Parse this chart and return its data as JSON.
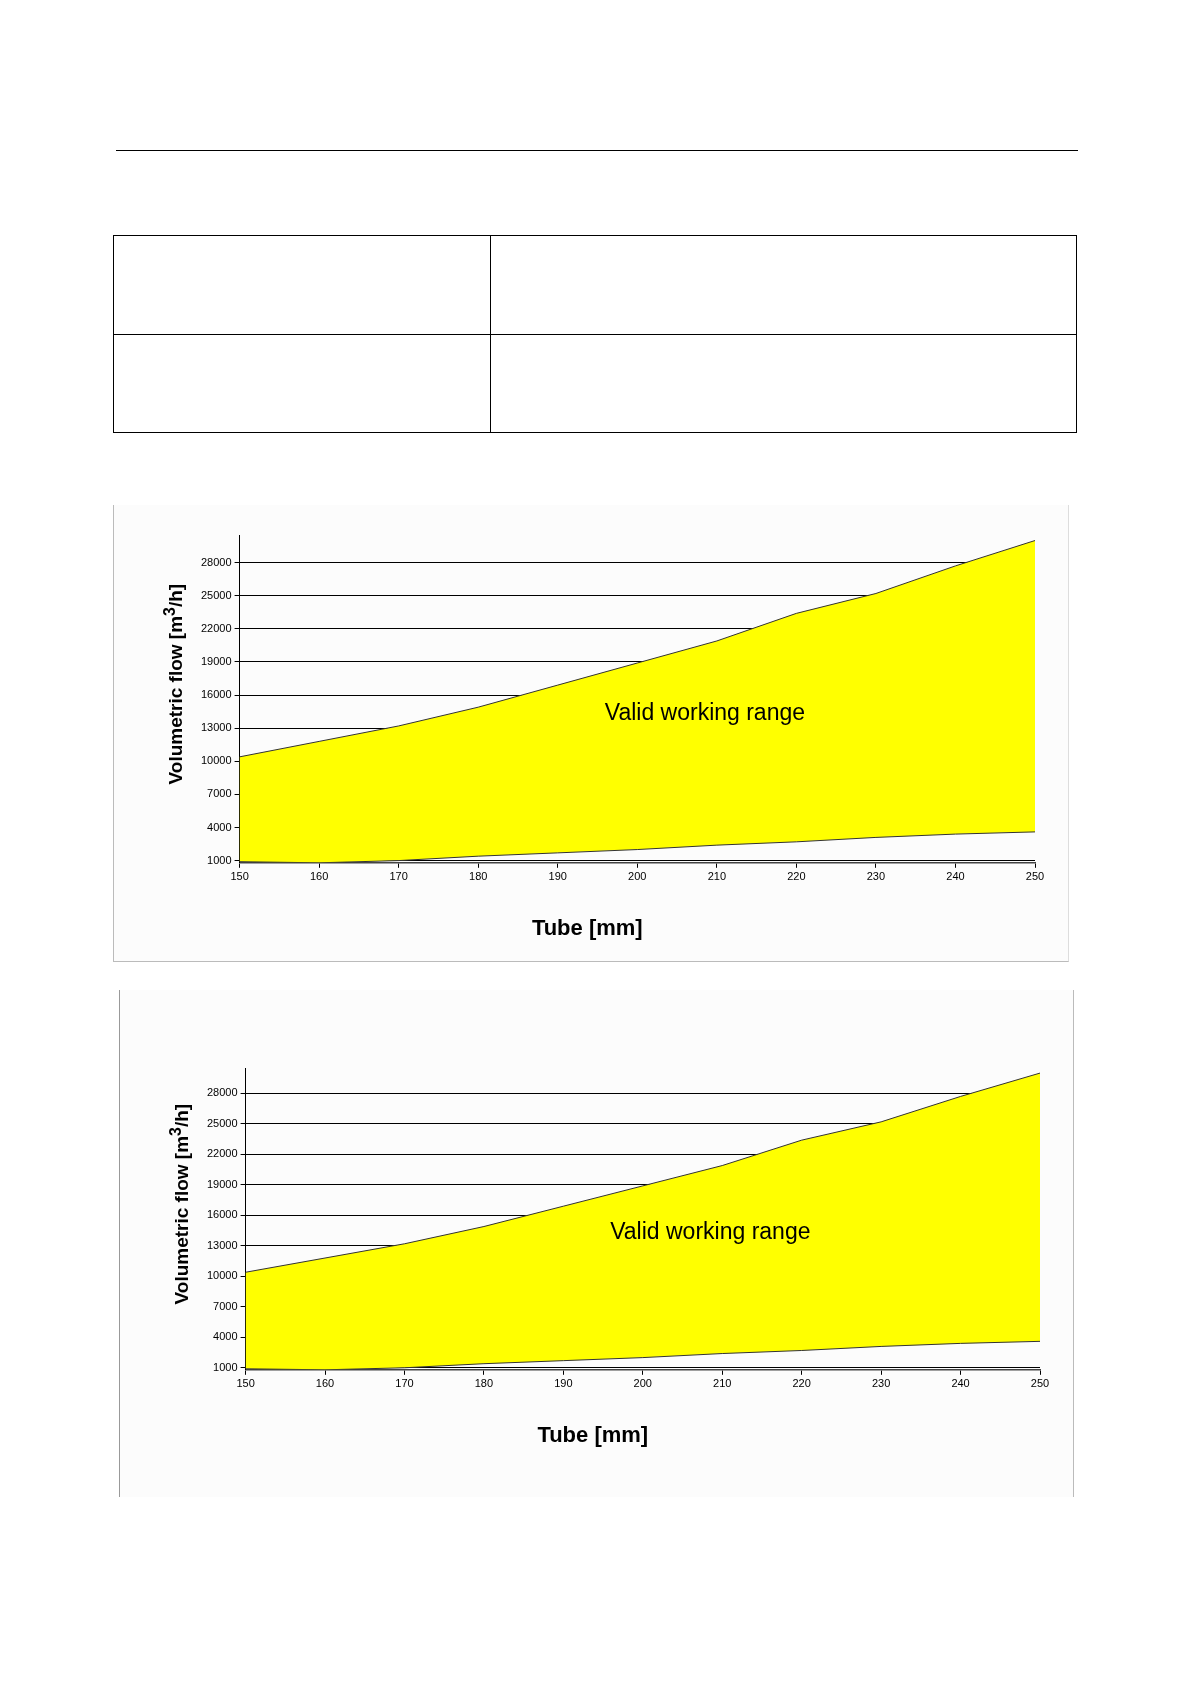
{
  "chart_data": [
    {
      "type": "area",
      "xlabel": "Tube [mm]",
      "ylabel": "Volumetric flow [m$^{3}$/h]",
      "annotations": [
        "Valid working range"
      ],
      "x": [
        150,
        160,
        170,
        180,
        190,
        200,
        210,
        220,
        230,
        240,
        250
      ],
      "series": [
        {
          "type": "line",
          "color": "#333333",
          "values": [
            900,
            800,
            1000,
            1400,
            1700,
            2000,
            2400,
            2700,
            3100,
            3400,
            3600
          ]
        },
        {
          "type": "area",
          "color": "#ffff00",
          "values": [
            10400,
            11800,
            13200,
            14900,
            16900,
            18900,
            20900,
            23400,
            25200,
            27700,
            30000
          ]
        }
      ],
      "xlim": [
        150,
        250
      ],
      "xticks": [
        150,
        160,
        170,
        180,
        190,
        200,
        210,
        220,
        230,
        240,
        250
      ],
      "ylim": [
        800,
        30500
      ],
      "yticks": [
        1000,
        4000,
        7000,
        10000,
        13000,
        16000,
        19000,
        22000,
        25000,
        28000
      ],
      "grid": "y"
    },
    {
      "type": "area",
      "xlabel": "Tube [mm]",
      "ylabel": "Volumetric flow [m$^{3}$/h]",
      "annotations": [
        "Valid working range"
      ],
      "x": [
        150,
        160,
        170,
        180,
        190,
        200,
        210,
        220,
        230,
        240,
        250
      ],
      "series": [
        {
          "type": "line",
          "color": "#333333",
          "values": [
            900,
            800,
            1000,
            1400,
            1700,
            2000,
            2400,
            2700,
            3100,
            3400,
            3600
          ]
        },
        {
          "type": "area",
          "color": "#ffff00",
          "values": [
            10400,
            11800,
            13200,
            14900,
            16900,
            18900,
            20900,
            23400,
            25200,
            27700,
            30000
          ]
        }
      ],
      "xlim": [
        150,
        250
      ],
      "xticks": [
        150,
        160,
        170,
        180,
        190,
        200,
        210,
        220,
        230,
        240,
        250
      ],
      "ylim": [
        800,
        30500
      ],
      "yticks": [
        1000,
        4000,
        7000,
        10000,
        13000,
        16000,
        19000,
        22000,
        25000,
        28000
      ],
      "grid": "y"
    }
  ]
}
